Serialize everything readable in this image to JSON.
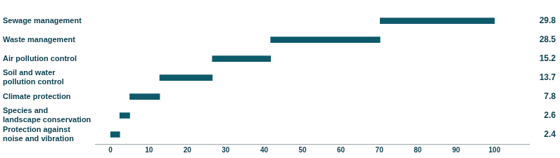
{
  "chart_data": {
    "type": "bar",
    "orientation": "horizontal",
    "categories": [
      "Sewage management",
      "Waste management",
      "Air pollution control",
      "Soil and water pollution control",
      "Climate protection",
      "Species and landscape conservation",
      "Protection against noise and vibration"
    ],
    "values": [
      29.8,
      28.5,
      15.2,
      13.7,
      7.8,
      2.6,
      2.4
    ],
    "stacked": true,
    "color": "#0e5a6b",
    "xlim": [
      -4,
      109
    ],
    "xticks": [
      0,
      10,
      20,
      30,
      40,
      50,
      60,
      70,
      80,
      90,
      100
    ],
    "grid": false,
    "data_labels": true
  }
}
